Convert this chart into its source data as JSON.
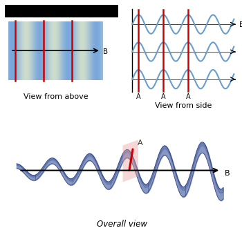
{
  "bg_color": "#ffffff",
  "wave_color": "#6b9ec8",
  "wave_color_dark": "#4a7aaa",
  "red_line_color": "#cc0000",
  "strip_blue": "#7ab0d4",
  "strip_light": "#c8dce8",
  "strip_green": "#c8d8c0",
  "title_above": "View from above",
  "title_side": "View from side",
  "title_overall": "Overall view",
  "label_B": "B",
  "label_A": "A",
  "wave_3d_color": "#6b7fb8",
  "wave_3d_dark": "#4a5a90",
  "wave_3d_light": "#9aaad0",
  "pink_plane_color": "#e8a0a0",
  "red_line_3d": "#cc0000"
}
